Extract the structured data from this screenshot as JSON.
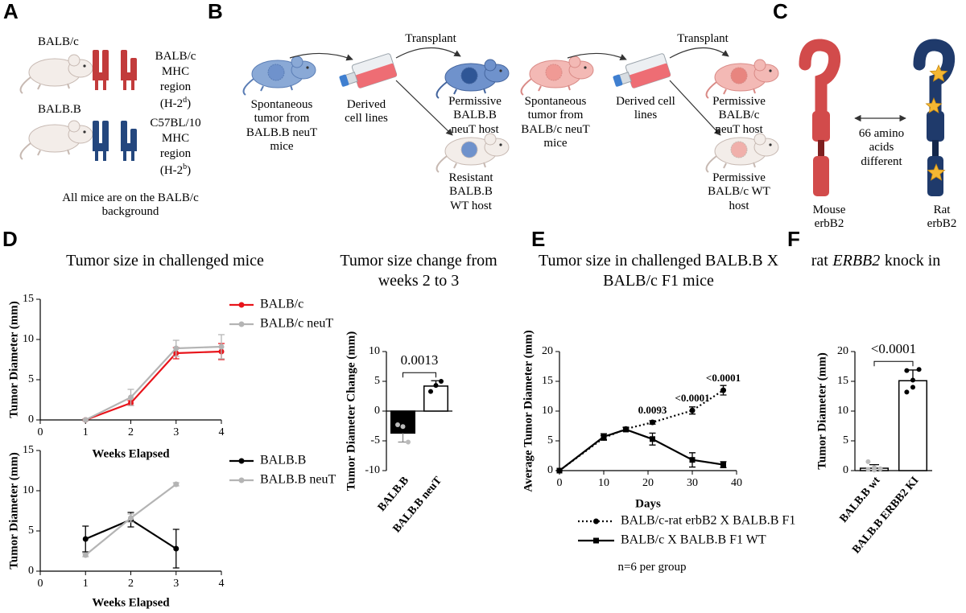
{
  "panel_labels": [
    "A",
    "B",
    "C",
    "D",
    "E",
    "F"
  ],
  "panel_a": {
    "strain_1": "BALB/c",
    "strain_2": "BALB.B",
    "region_1": [
      "BALB/c",
      "MHC",
      "region"
    ],
    "haplotype_1": [
      "(H-2",
      "d",
      ")"
    ],
    "region_2": [
      "C57BL/10",
      "MHC",
      "region"
    ],
    "haplotype_2": [
      "(H-2",
      "b",
      ")"
    ],
    "note": "All mice are on the BALB/c background"
  },
  "panel_b": {
    "transplant": [
      "Transplant",
      "Transplant"
    ],
    "left": {
      "source": "Spontaneous tumor from BALB.B neuT mice",
      "cells": "Derived cell lines",
      "host_1": "Permissive BALB.B neuT host",
      "host_2": "Resistant BALB.B WT host"
    },
    "right": {
      "source": "Spontaneous tumor from BALB/c neuT mice",
      "cells": "Derived cell lines",
      "host_1": "Permissive BALB/c neuT host",
      "host_2": "Permissive BALB/c WT host"
    }
  },
  "panel_c": {
    "difference": "66 amino acids different",
    "mouse": "Mouse erbB2",
    "rat": "Rat erbB2"
  },
  "chart_data": [
    {
      "type": "line",
      "title": "Tumor size in challenged mice",
      "xlabel": "Weeks Elapsed",
      "ylabel": "Tumor Diameter (mm)",
      "x": [
        1,
        2,
        3,
        4
      ],
      "xlim": [
        0,
        4
      ],
      "xticks": [
        0,
        1,
        2,
        3,
        4
      ],
      "ylim": [
        0,
        15
      ],
      "yticks": [
        0,
        5,
        10,
        15
      ],
      "series": [
        {
          "name": "BALB/c",
          "color": "#e8141b",
          "line_style": "solid",
          "marker": "circle",
          "values": [
            0,
            2.1,
            8.3,
            8.5
          ],
          "errors": [
            0.1,
            0.3,
            0.7,
            1.0
          ]
        },
        {
          "name": "BALB/c neuT",
          "color": "#b4b4b4",
          "line_style": "solid",
          "marker": "circle",
          "values": [
            0,
            2.8,
            8.9,
            9.1
          ],
          "errors": [
            0.1,
            1.0,
            1.0,
            1.5
          ]
        }
      ]
    },
    {
      "type": "line",
      "xlabel": "Weeks Elapsed",
      "ylabel": "Tumor Diameter (mm)",
      "x": [
        1,
        2,
        3
      ],
      "xlim": [
        0,
        4
      ],
      "xticks": [
        0,
        1,
        2,
        3,
        4
      ],
      "ylim": [
        0,
        15
      ],
      "yticks": [
        0,
        5,
        10,
        15
      ],
      "series": [
        {
          "name": "BALB.B",
          "color": "#000000",
          "line_style": "solid",
          "marker": "circle",
          "values": [
            4.0,
            6.4,
            2.8
          ],
          "errors": [
            1.6,
            0.9,
            2.4
          ]
        },
        {
          "name": "BALB.B neuT",
          "color": "#b4b4b4",
          "line_style": "solid",
          "marker": "circle",
          "values": [
            2.0,
            6.6,
            10.8
          ],
          "errors": [
            0.2,
            0.5,
            0.2
          ]
        }
      ]
    },
    {
      "type": "bar",
      "title": "Tumor size change from weeks 2 to 3",
      "ylabel": "Tumor Diameter Change (mm)",
      "categories": [
        "BALB.B",
        "BALB.B neuT"
      ],
      "values": [
        -3.7,
        4.2
      ],
      "errors": [
        1.5,
        0.9
      ],
      "points": [
        [
          -2.3,
          -2.6,
          -5.2
        ],
        [
          3.3,
          4.3,
          5.0
        ]
      ],
      "colors": [
        "#000000",
        "#ffffff"
      ],
      "point_colors": [
        "#bbbbbb",
        "#000000"
      ],
      "annotation": "0.0013",
      "ylim": [
        -10,
        10
      ],
      "yticks": [
        -10,
        -5,
        0,
        5,
        10
      ]
    },
    {
      "type": "line",
      "title": "Tumor size in challenged BALB.B X BALB/c F1 mice",
      "xlabel": "Days",
      "ylabel": "Average Tumor Diameter (mm)",
      "x": [
        0,
        10,
        15,
        21,
        30,
        37
      ],
      "xlim": [
        0,
        40
      ],
      "xticks": [
        0,
        10,
        20,
        30,
        40
      ],
      "ylim": [
        0,
        20
      ],
      "yticks": [
        0,
        5,
        10,
        15,
        20
      ],
      "series": [
        {
          "name": "BALB/c-rat erbB2 X BALB.B F1",
          "color": "#000000",
          "line_style": "dotted",
          "marker": "circle",
          "values": [
            0,
            5.5,
            7.0,
            8.1,
            10.1,
            13.5
          ],
          "errors": [
            0,
            0.4,
            0.3,
            0.3,
            0.6,
            0.8
          ]
        },
        {
          "name": "BALB/c X BALB.B F1 WT",
          "color": "#000000",
          "line_style": "solid",
          "marker": "square",
          "values": [
            0,
            5.7,
            6.9,
            5.3,
            1.8,
            1.0
          ],
          "errors": [
            0,
            0.5,
            0.3,
            1.0,
            1.2,
            0.5
          ]
        }
      ],
      "annotations": [
        "0.0093",
        "<0.0001",
        "<0.0001"
      ],
      "note": "n=6 per group"
    },
    {
      "type": "bar",
      "title": [
        "rat",
        "ERBB2",
        "knock in"
      ],
      "ylabel": "Tumor Diameter (mm)",
      "categories": [
        "BALB.B wt",
        "BALB.B ERBB2 KI"
      ],
      "values": [
        0.4,
        15.1
      ],
      "errors": [
        0.6,
        1.8
      ],
      "points": [
        [
          0.2,
          0.5,
          0.3,
          1.5,
          0.1
        ],
        [
          13.2,
          15.2,
          17.0,
          16.8,
          14.0
        ]
      ],
      "colors": [
        "#ffffff",
        "#ffffff"
      ],
      "point_colors": [
        "#bbbbbb",
        "#000000"
      ],
      "annotation": "<0.0001",
      "ylim": [
        0,
        20
      ],
      "yticks": [
        0,
        5,
        10,
        15,
        20
      ]
    }
  ]
}
